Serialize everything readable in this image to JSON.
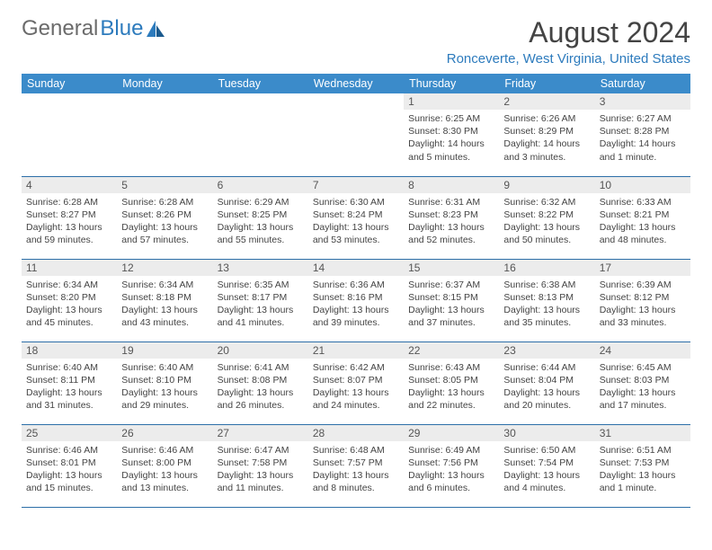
{
  "brand": {
    "part1": "General",
    "part2": "Blue"
  },
  "title": "August 2024",
  "location": "Ronceverte, West Virginia, United States",
  "colors": {
    "header_bg": "#3b8bca",
    "header_text": "#ffffff",
    "daynum_bg": "#ececec",
    "border": "#2d6fa8",
    "brand_gray": "#6b6b6b",
    "brand_blue": "#2d7bbd"
  },
  "day_headers": [
    "Sunday",
    "Monday",
    "Tuesday",
    "Wednesday",
    "Thursday",
    "Friday",
    "Saturday"
  ],
  "weeks": [
    [
      {
        "n": "",
        "sr": "",
        "ss": "",
        "dl": ""
      },
      {
        "n": "",
        "sr": "",
        "ss": "",
        "dl": ""
      },
      {
        "n": "",
        "sr": "",
        "ss": "",
        "dl": ""
      },
      {
        "n": "",
        "sr": "",
        "ss": "",
        "dl": ""
      },
      {
        "n": "1",
        "sr": "Sunrise: 6:25 AM",
        "ss": "Sunset: 8:30 PM",
        "dl": "Daylight: 14 hours and 5 minutes."
      },
      {
        "n": "2",
        "sr": "Sunrise: 6:26 AM",
        "ss": "Sunset: 8:29 PM",
        "dl": "Daylight: 14 hours and 3 minutes."
      },
      {
        "n": "3",
        "sr": "Sunrise: 6:27 AM",
        "ss": "Sunset: 8:28 PM",
        "dl": "Daylight: 14 hours and 1 minute."
      }
    ],
    [
      {
        "n": "4",
        "sr": "Sunrise: 6:28 AM",
        "ss": "Sunset: 8:27 PM",
        "dl": "Daylight: 13 hours and 59 minutes."
      },
      {
        "n": "5",
        "sr": "Sunrise: 6:28 AM",
        "ss": "Sunset: 8:26 PM",
        "dl": "Daylight: 13 hours and 57 minutes."
      },
      {
        "n": "6",
        "sr": "Sunrise: 6:29 AM",
        "ss": "Sunset: 8:25 PM",
        "dl": "Daylight: 13 hours and 55 minutes."
      },
      {
        "n": "7",
        "sr": "Sunrise: 6:30 AM",
        "ss": "Sunset: 8:24 PM",
        "dl": "Daylight: 13 hours and 53 minutes."
      },
      {
        "n": "8",
        "sr": "Sunrise: 6:31 AM",
        "ss": "Sunset: 8:23 PM",
        "dl": "Daylight: 13 hours and 52 minutes."
      },
      {
        "n": "9",
        "sr": "Sunrise: 6:32 AM",
        "ss": "Sunset: 8:22 PM",
        "dl": "Daylight: 13 hours and 50 minutes."
      },
      {
        "n": "10",
        "sr": "Sunrise: 6:33 AM",
        "ss": "Sunset: 8:21 PM",
        "dl": "Daylight: 13 hours and 48 minutes."
      }
    ],
    [
      {
        "n": "11",
        "sr": "Sunrise: 6:34 AM",
        "ss": "Sunset: 8:20 PM",
        "dl": "Daylight: 13 hours and 45 minutes."
      },
      {
        "n": "12",
        "sr": "Sunrise: 6:34 AM",
        "ss": "Sunset: 8:18 PM",
        "dl": "Daylight: 13 hours and 43 minutes."
      },
      {
        "n": "13",
        "sr": "Sunrise: 6:35 AM",
        "ss": "Sunset: 8:17 PM",
        "dl": "Daylight: 13 hours and 41 minutes."
      },
      {
        "n": "14",
        "sr": "Sunrise: 6:36 AM",
        "ss": "Sunset: 8:16 PM",
        "dl": "Daylight: 13 hours and 39 minutes."
      },
      {
        "n": "15",
        "sr": "Sunrise: 6:37 AM",
        "ss": "Sunset: 8:15 PM",
        "dl": "Daylight: 13 hours and 37 minutes."
      },
      {
        "n": "16",
        "sr": "Sunrise: 6:38 AM",
        "ss": "Sunset: 8:13 PM",
        "dl": "Daylight: 13 hours and 35 minutes."
      },
      {
        "n": "17",
        "sr": "Sunrise: 6:39 AM",
        "ss": "Sunset: 8:12 PM",
        "dl": "Daylight: 13 hours and 33 minutes."
      }
    ],
    [
      {
        "n": "18",
        "sr": "Sunrise: 6:40 AM",
        "ss": "Sunset: 8:11 PM",
        "dl": "Daylight: 13 hours and 31 minutes."
      },
      {
        "n": "19",
        "sr": "Sunrise: 6:40 AM",
        "ss": "Sunset: 8:10 PM",
        "dl": "Daylight: 13 hours and 29 minutes."
      },
      {
        "n": "20",
        "sr": "Sunrise: 6:41 AM",
        "ss": "Sunset: 8:08 PM",
        "dl": "Daylight: 13 hours and 26 minutes."
      },
      {
        "n": "21",
        "sr": "Sunrise: 6:42 AM",
        "ss": "Sunset: 8:07 PM",
        "dl": "Daylight: 13 hours and 24 minutes."
      },
      {
        "n": "22",
        "sr": "Sunrise: 6:43 AM",
        "ss": "Sunset: 8:05 PM",
        "dl": "Daylight: 13 hours and 22 minutes."
      },
      {
        "n": "23",
        "sr": "Sunrise: 6:44 AM",
        "ss": "Sunset: 8:04 PM",
        "dl": "Daylight: 13 hours and 20 minutes."
      },
      {
        "n": "24",
        "sr": "Sunrise: 6:45 AM",
        "ss": "Sunset: 8:03 PM",
        "dl": "Daylight: 13 hours and 17 minutes."
      }
    ],
    [
      {
        "n": "25",
        "sr": "Sunrise: 6:46 AM",
        "ss": "Sunset: 8:01 PM",
        "dl": "Daylight: 13 hours and 15 minutes."
      },
      {
        "n": "26",
        "sr": "Sunrise: 6:46 AM",
        "ss": "Sunset: 8:00 PM",
        "dl": "Daylight: 13 hours and 13 minutes."
      },
      {
        "n": "27",
        "sr": "Sunrise: 6:47 AM",
        "ss": "Sunset: 7:58 PM",
        "dl": "Daylight: 13 hours and 11 minutes."
      },
      {
        "n": "28",
        "sr": "Sunrise: 6:48 AM",
        "ss": "Sunset: 7:57 PM",
        "dl": "Daylight: 13 hours and 8 minutes."
      },
      {
        "n": "29",
        "sr": "Sunrise: 6:49 AM",
        "ss": "Sunset: 7:56 PM",
        "dl": "Daylight: 13 hours and 6 minutes."
      },
      {
        "n": "30",
        "sr": "Sunrise: 6:50 AM",
        "ss": "Sunset: 7:54 PM",
        "dl": "Daylight: 13 hours and 4 minutes."
      },
      {
        "n": "31",
        "sr": "Sunrise: 6:51 AM",
        "ss": "Sunset: 7:53 PM",
        "dl": "Daylight: 13 hours and 1 minute."
      }
    ]
  ]
}
